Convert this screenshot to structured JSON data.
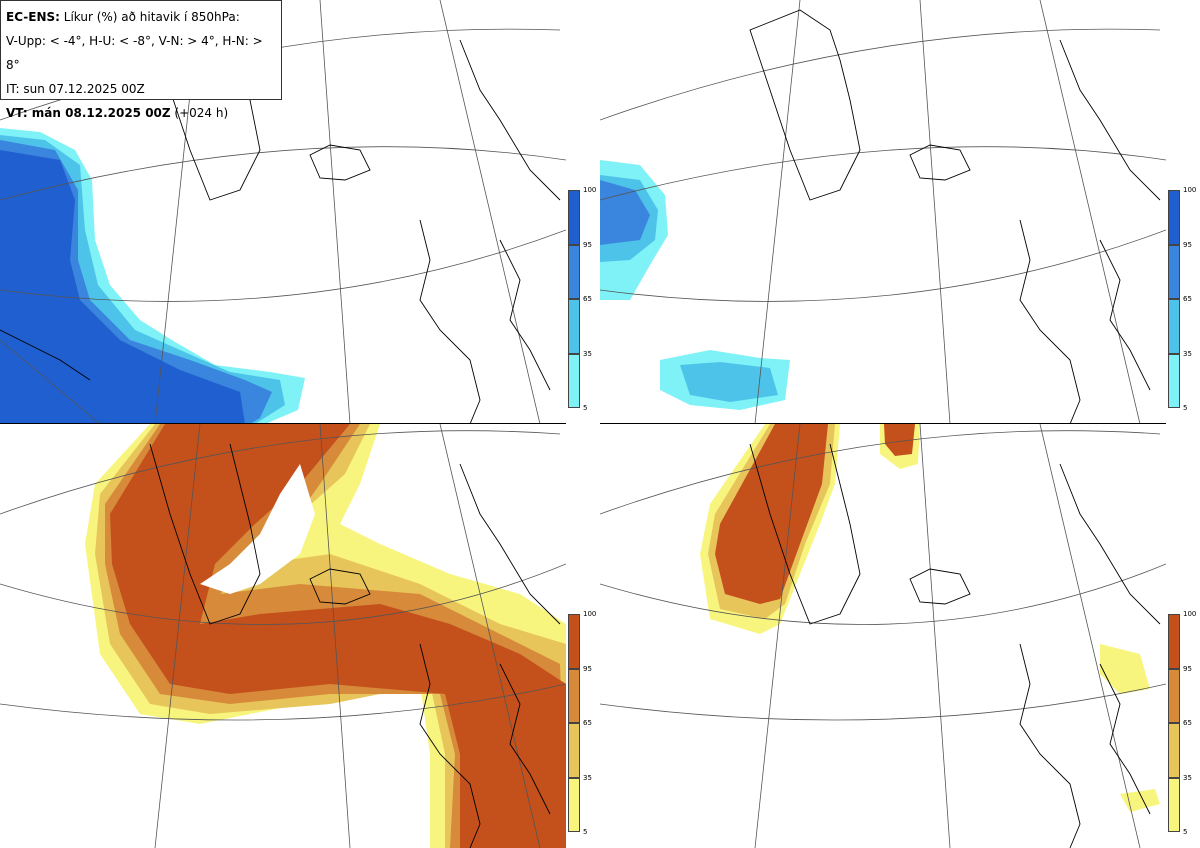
{
  "info": {
    "model_label": "EC-ENS:",
    "title_text": " Líkur (%) að hitavik í 850hPa:",
    "criteria": "V-Upp: < -4°, H-U: < -8°, V-N: > 4°, H-N: > 8°",
    "it": "IT: sun 07.12.2025 00Z",
    "vt_bold": "VT: mán 08.12.2025 00Z",
    "vt_suffix": " (+024 h)"
  },
  "colorbar_cold": {
    "ticks": [
      "100",
      "95",
      "65",
      "35",
      "5"
    ],
    "colors": [
      "#1f5fcf",
      "#3a86de",
      "#4ec3ea",
      "#7ef2f6"
    ]
  },
  "colorbar_warm": {
    "ticks": [
      "100",
      "95",
      "65",
      "35",
      "5"
    ],
    "colors": [
      "#c4501c",
      "#d68a3a",
      "#e8c55a",
      "#f8f57e"
    ]
  },
  "panels": [
    {
      "id": "V-Upp",
      "scheme": "cold"
    },
    {
      "id": "H-U",
      "scheme": "cold"
    },
    {
      "id": "V-N",
      "scheme": "warm"
    },
    {
      "id": "H-N",
      "scheme": "warm"
    }
  ]
}
